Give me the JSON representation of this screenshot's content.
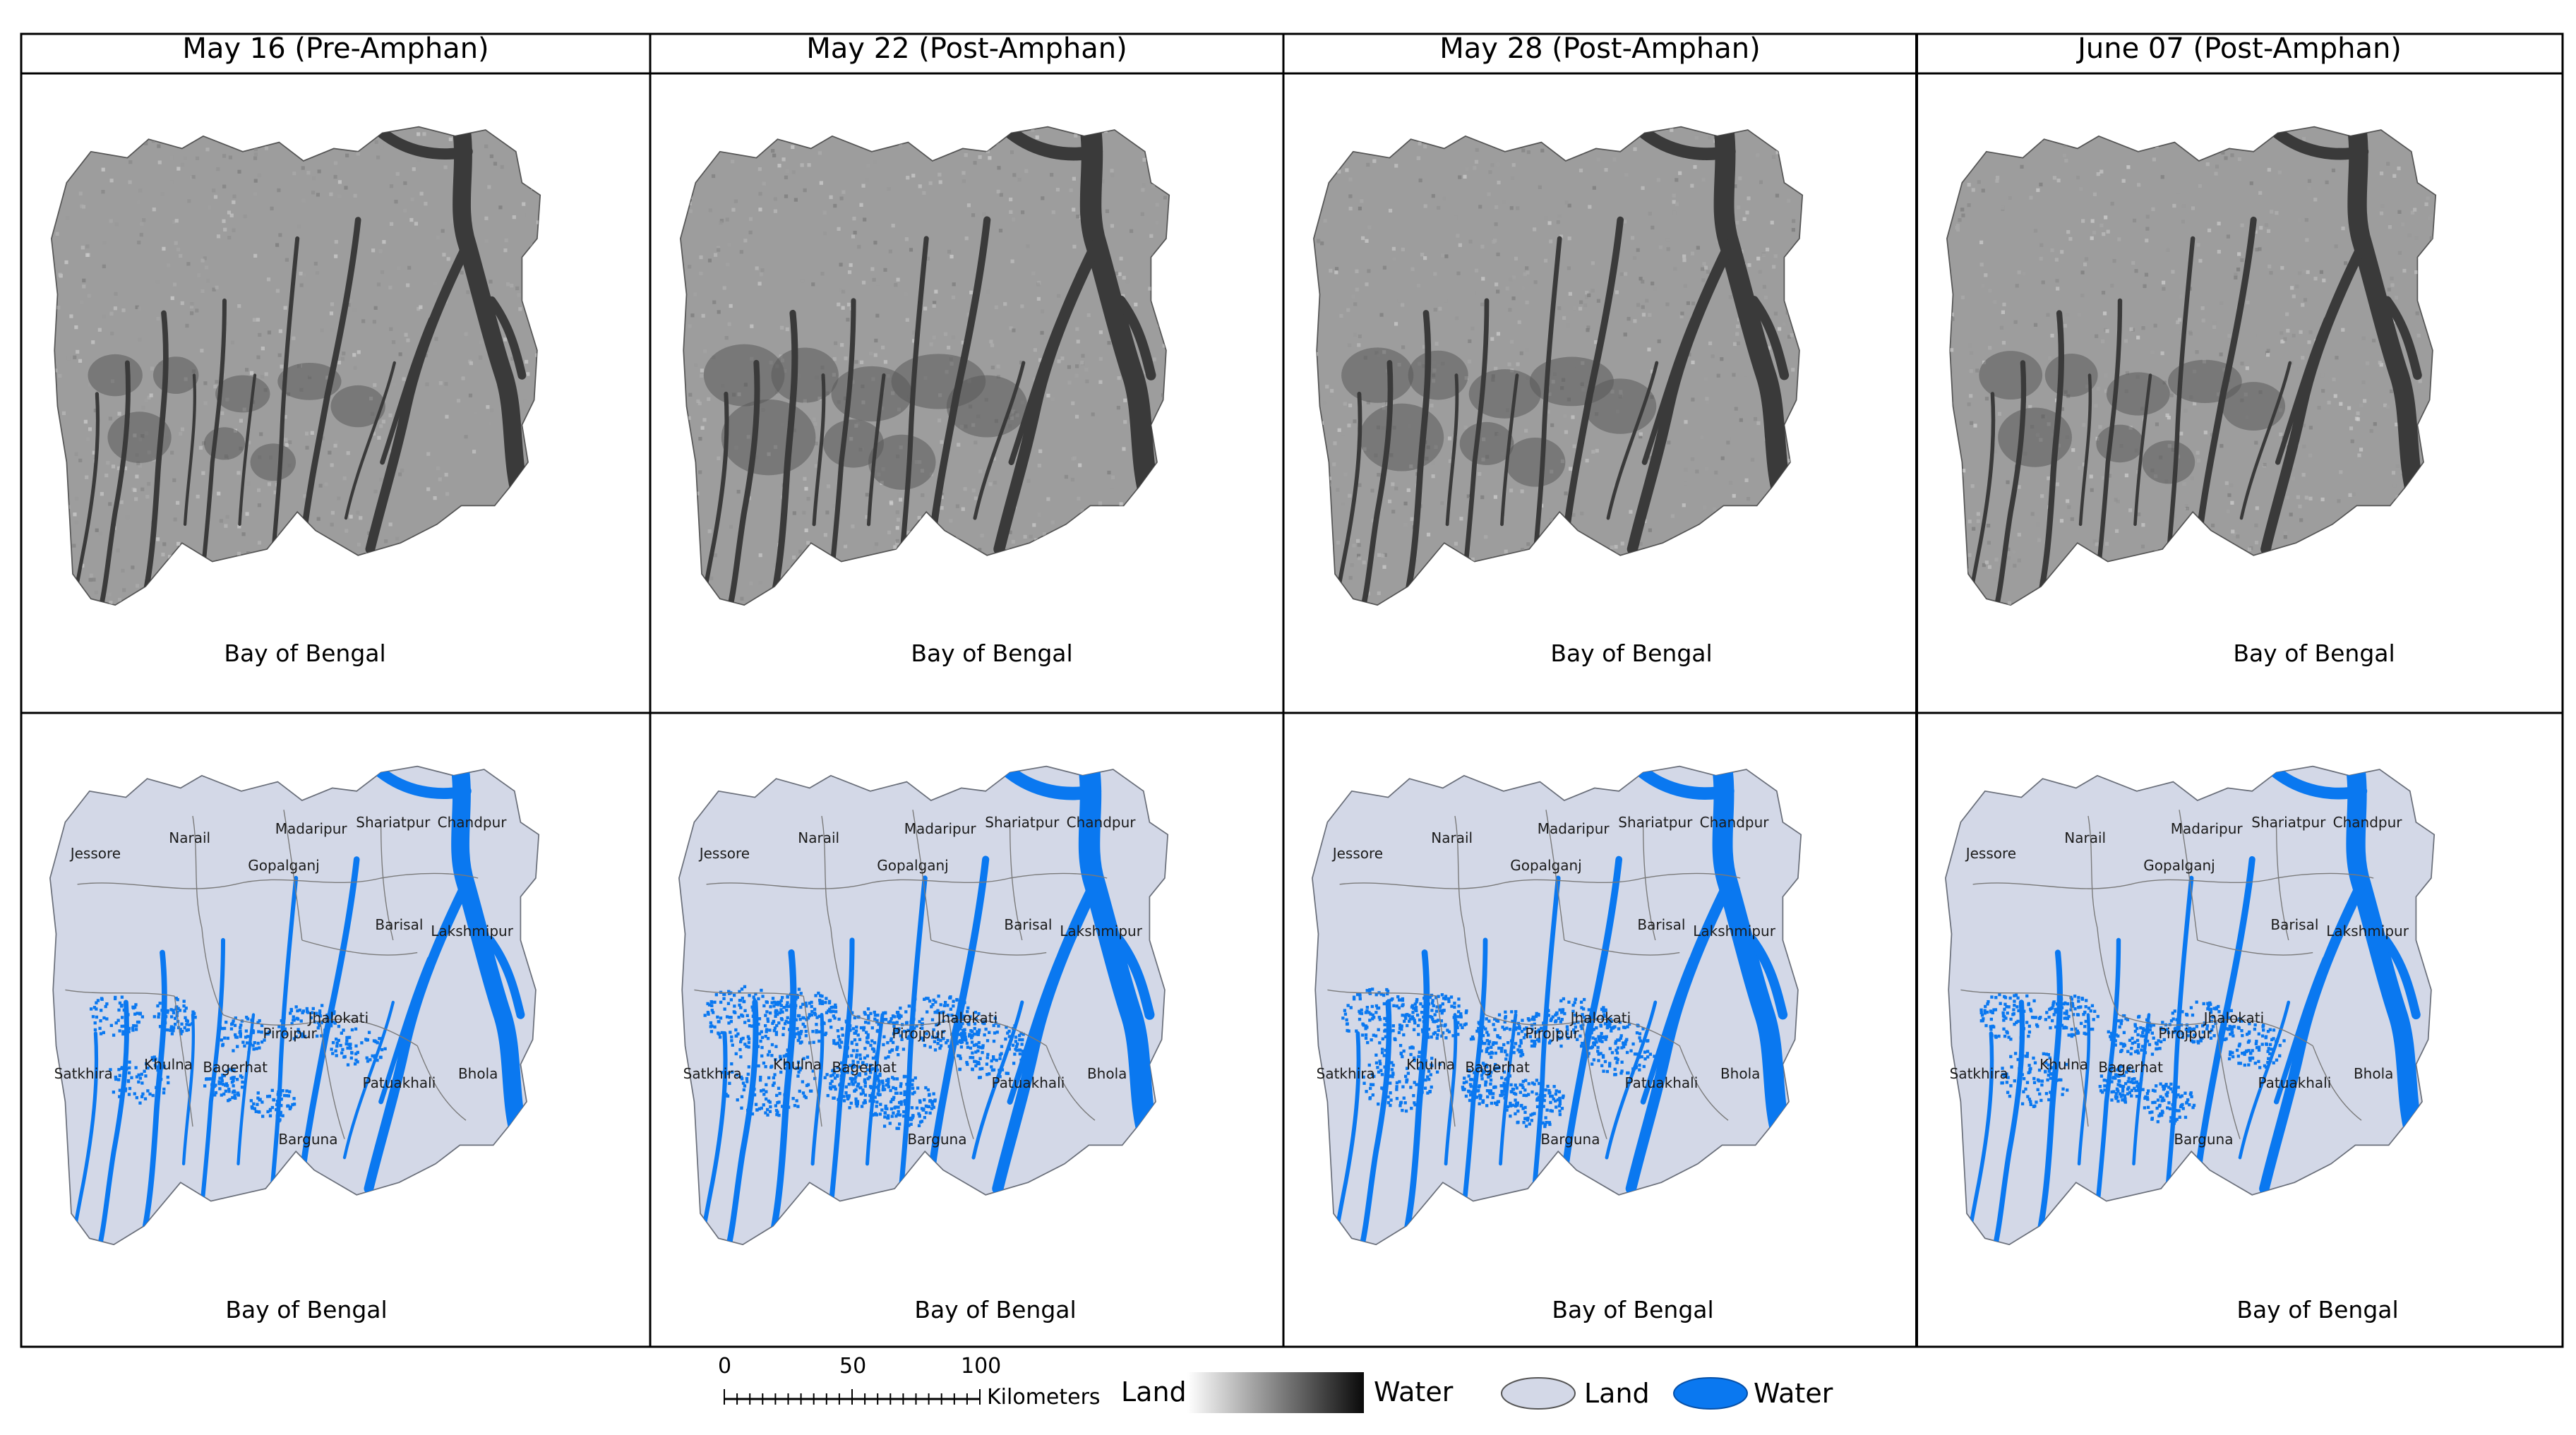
{
  "columns": [
    {
      "title": "May 16 (Pre-Amphan)",
      "water_level": 0
    },
    {
      "title": "May 22 (Post-Amphan)",
      "water_level": 3
    },
    {
      "title": "May 28 (Post-Amphan)",
      "water_level": 2
    },
    {
      "title": "June 07 (Post-Amphan)",
      "water_level": 1
    }
  ],
  "bay_label": "Bay of Bengal",
  "district_labels": [
    "Jessore",
    "Narail",
    "Madaripur",
    "Shariatpur",
    "Chandpur",
    "Gopalganj",
    "Barisal",
    "Lakshmipur",
    "Jhalokati",
    "Pirojpur",
    "Khulna",
    "Satkhira",
    "Bagerhat",
    "Patuakhali",
    "Bhola",
    "Barguna"
  ],
  "legend": {
    "scale_ticks": [
      "0",
      "50",
      "100"
    ],
    "scale_unit": "Kilometers",
    "sar_low_label": "Land",
    "sar_high_label": "Water",
    "class_land_label": "Land",
    "class_water_label": "Water",
    "land_color": "#d3d8e7",
    "water_color": "#0a78f0",
    "sar_low_color": "#ffffff",
    "sar_high_color": "#0a0a0a"
  },
  "colors": {
    "sar_land": "#9d9d9d",
    "sar_water": "#3a3a3a",
    "class_land": "#d3d8e7",
    "class_water": "#0a78f0",
    "district_border": "#7a7a7a",
    "frame": "#000000"
  }
}
